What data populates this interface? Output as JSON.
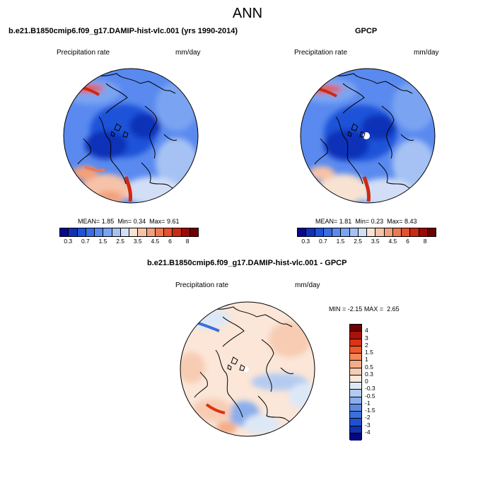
{
  "title": "ANN",
  "panels": [
    {
      "case": "b.e21.B1850cmip6.f09_g17.DAMIP-hist-vlc.001 (yrs 1990-2014)",
      "variable": "Precipitation rate",
      "units": "mm/day",
      "stats": {
        "mean_label": "MEAN=",
        "mean": "1.85",
        "min_label": "Min=",
        "min": "0.34",
        "max_label": "Max=",
        "max": "9.61"
      }
    },
    {
      "case": "GPCP",
      "variable": "Precipitation rate",
      "units": "mm/day",
      "stats": {
        "mean_label": "MEAN=",
        "mean": "1.81",
        "min_label": "Min=",
        "min": "0.23",
        "max_label": "Max=",
        "max": "8.43"
      }
    },
    {
      "case": "b.e21.B1850cmip6.f09_g17.DAMIP-hist-vlc.001 - GPCP",
      "variable": "Precipitation rate",
      "units": "mm/day",
      "stats": {
        "min_label": "MIN =",
        "min": "-2.15",
        "max_label": "MAX =",
        "max": "2.65"
      }
    }
  ],
  "abs_colorbar": {
    "colors": [
      "#08088c",
      "#1030b8",
      "#1f52d9",
      "#3a6ee6",
      "#5a8aef",
      "#7aa4f2",
      "#a6c2f4",
      "#d2def6",
      "#f8e2d2",
      "#f7c3a8",
      "#f2a07c",
      "#ec7a55",
      "#e5522e",
      "#cc2a12",
      "#9c0a04",
      "#6e0000"
    ],
    "tick_labels": [
      "0.3",
      "0.7",
      "1.5",
      "2.5",
      "3.5",
      "4.5",
      "6",
      "8"
    ]
  },
  "diff_colorbar": {
    "colors": [
      "#6e0000",
      "#a8120a",
      "#dc3312",
      "#ef5a2c",
      "#f28758",
      "#f4ad89",
      "#f7ccb3",
      "#fbe6d8",
      "#dde8f7",
      "#b4cbf1",
      "#8aaeec",
      "#5e8ae3",
      "#3d6edb",
      "#2050d2",
      "#1030ae",
      "#06067e"
    ],
    "tick_labels": [
      "4",
      "3",
      "2",
      "1.5",
      "1",
      "0.5",
      "0.3",
      "0",
      "-0.3",
      "-0.5",
      "-1",
      "-1.5",
      "-2",
      "-3",
      "-4"
    ]
  }
}
